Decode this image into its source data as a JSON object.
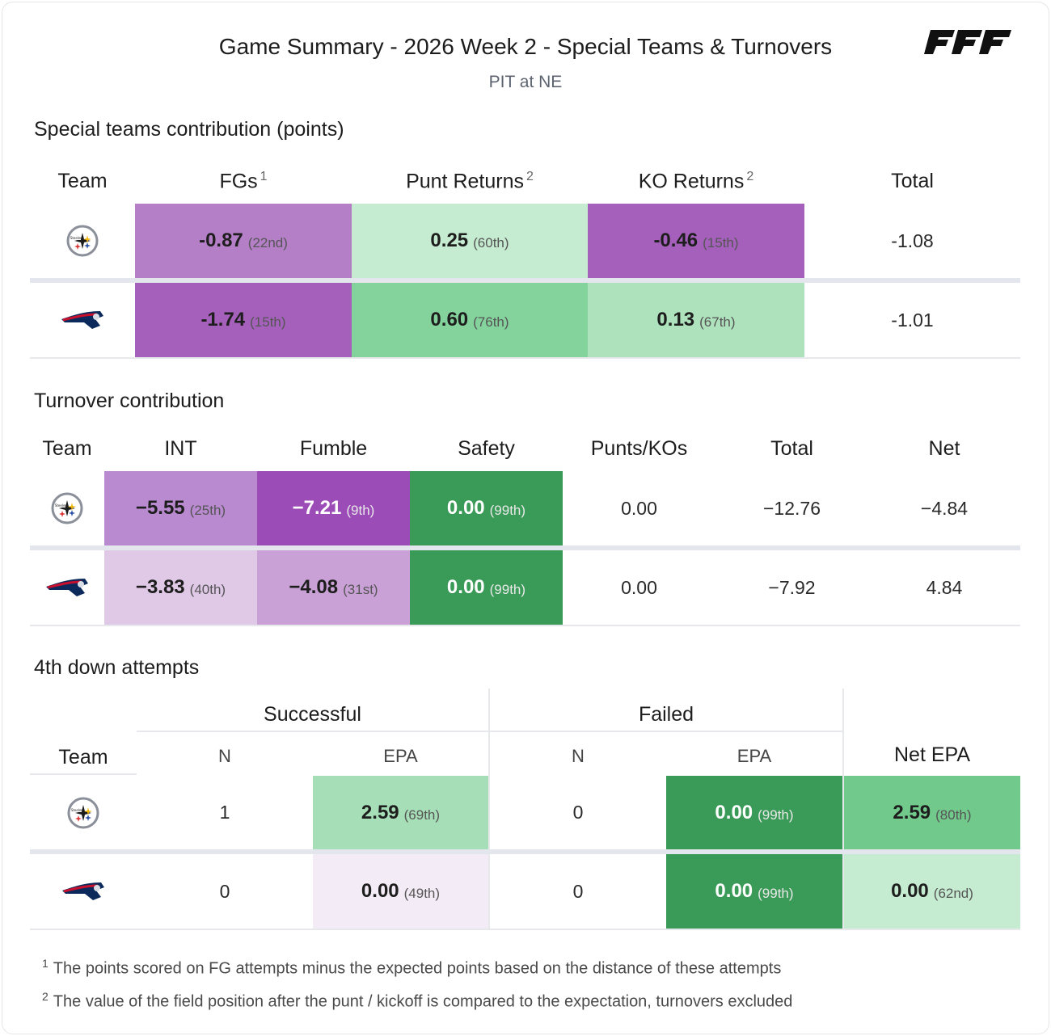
{
  "header": {
    "title": "Game Summary - 2026 Week 2 - Special Teams & Turnovers",
    "subtitle": "PIT at NE",
    "brand": "PFF"
  },
  "colors": {
    "purple_dark": "#9b4cb6",
    "purple_mid": "#a560bb",
    "purple_light": "#b57fc8",
    "purple_pale": "#c9a1d6",
    "purple_faint": "#e0c8e7",
    "purple_ghost": "#f3ebf6",
    "green_dark": "#3a9a57",
    "green_mid": "#84d39d",
    "green_mid2": "#72c98c",
    "green_light": "#a6dfb7",
    "green_pale": "#c5ebd0",
    "green_pale2": "#aee2bd"
  },
  "special_teams": {
    "section_title": "Special teams contribution (points)",
    "headers": {
      "team": "Team",
      "fgs": "FGs",
      "fgs_note": "1",
      "punt": "Punt Returns",
      "punt_note": "2",
      "ko": "KO Returns",
      "ko_note": "2",
      "total": "Total"
    },
    "rows": [
      {
        "team": "PIT",
        "fgs": "-0.87",
        "fgs_rank": "(22nd)",
        "punt": "0.25",
        "punt_rank": "(60th)",
        "ko": "-0.46",
        "ko_rank": "(15th)",
        "total": "-1.08"
      },
      {
        "team": "NE",
        "fgs": "-1.74",
        "fgs_rank": "(15th)",
        "punt": "0.60",
        "punt_rank": "(76th)",
        "ko": "0.13",
        "ko_rank": "(67th)",
        "total": "-1.01"
      }
    ]
  },
  "turnovers": {
    "section_title": "Turnover contribution",
    "headers": {
      "team": "Team",
      "int": "INT",
      "fumble": "Fumble",
      "safety": "Safety",
      "punts": "Punts/KOs",
      "total": "Total",
      "net": "Net"
    },
    "rows": [
      {
        "team": "PIT",
        "int": "−5.55",
        "int_rank": "(25th)",
        "fumble": "−7.21",
        "fumble_rank": "(9th)",
        "safety": "0.00",
        "safety_rank": "(99th)",
        "punts": "0.00",
        "total": "−12.76",
        "net": "−4.84"
      },
      {
        "team": "NE",
        "int": "−3.83",
        "int_rank": "(40th)",
        "fumble": "−4.08",
        "fumble_rank": "(31st)",
        "safety": "0.00",
        "safety_rank": "(99th)",
        "punts": "0.00",
        "total": "−7.92",
        "net": "4.84"
      }
    ]
  },
  "fourth_down": {
    "section_title": "4th down attempts",
    "headers": {
      "successful": "Successful",
      "failed": "Failed",
      "team": "Team",
      "n": "N",
      "epa": "EPA",
      "net": "Net EPA"
    },
    "rows": [
      {
        "team": "PIT",
        "s_n": "1",
        "s_epa": "2.59",
        "s_rank": "(69th)",
        "f_n": "0",
        "f_epa": "0.00",
        "f_rank": "(99th)",
        "net": "2.59",
        "net_rank": "(80th)"
      },
      {
        "team": "NE",
        "s_n": "0",
        "s_epa": "0.00",
        "s_rank": "(49th)",
        "f_n": "0",
        "f_epa": "0.00",
        "f_rank": "(99th)",
        "net": "0.00",
        "net_rank": "(62nd)"
      }
    ]
  },
  "footnotes": [
    {
      "mark": "1",
      "text": "The points scored on FG attempts minus the expected points based on the distance of these attempts"
    },
    {
      "mark": "2",
      "text": "The value of the field position after the punt / kickoff is compared to the expectation, turnovers excluded"
    }
  ]
}
